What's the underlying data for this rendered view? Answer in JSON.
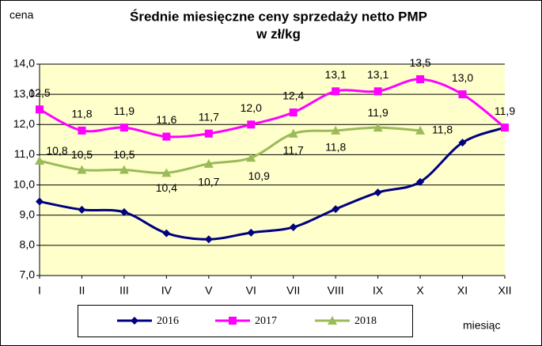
{
  "chart_data": {
    "type": "line",
    "title": "Średnie miesięczne ceny sprzedaży netto PMP",
    "subtitle": "w zł/kg",
    "y_label": "cena",
    "x_label": "miesiąc",
    "categories": [
      "I",
      "II",
      "III",
      "IV",
      "V",
      "VI",
      "VII",
      "VIII",
      "IX",
      "X",
      "XI",
      "XII"
    ],
    "series": [
      {
        "name": "2016",
        "color": "#000080",
        "marker": "diamond",
        "values": [
          9.45,
          9.18,
          9.1,
          8.4,
          8.2,
          8.42,
          8.6,
          9.2,
          9.75,
          10.1,
          11.4,
          11.9
        ]
      },
      {
        "name": "2017",
        "color": "#ff00ff",
        "marker": "square",
        "values": [
          12.5,
          11.8,
          11.9,
          11.6,
          11.7,
          12.0,
          12.4,
          13.1,
          13.1,
          13.5,
          13.0,
          11.9
        ],
        "value_labels": [
          "12,5",
          "11,8",
          "11,9",
          "11,6",
          "11,7",
          "12,0",
          "12,4",
          "13,1",
          "13,1",
          "13,5",
          "13,0",
          "11,9"
        ]
      },
      {
        "name": "2018",
        "color": "#9bbb59",
        "marker": "triangle",
        "values": [
          10.8,
          10.5,
          10.5,
          10.4,
          10.7,
          10.9,
          11.7,
          11.8,
          11.9,
          11.8,
          null,
          null
        ],
        "value_labels": [
          "10,8",
          "10,5",
          "10,5",
          "10,4",
          "10,7",
          "10,9",
          "11,7",
          "11,8",
          "11,9",
          "11,8",
          null,
          null
        ]
      }
    ],
    "ylim": [
      7,
      14
    ],
    "yticks": [
      {
        "value": 7,
        "label": "7,0"
      },
      {
        "value": 8,
        "label": "8,0"
      },
      {
        "value": 9,
        "label": "9,0"
      },
      {
        "value": 10,
        "label": "10,0"
      },
      {
        "value": 11,
        "label": "11,0"
      },
      {
        "value": 12,
        "label": "12,0"
      },
      {
        "value": 13,
        "label": "13,0"
      },
      {
        "value": 14,
        "label": "14,0"
      }
    ],
    "grid": true,
    "legend": "bottom",
    "smooth": true
  }
}
